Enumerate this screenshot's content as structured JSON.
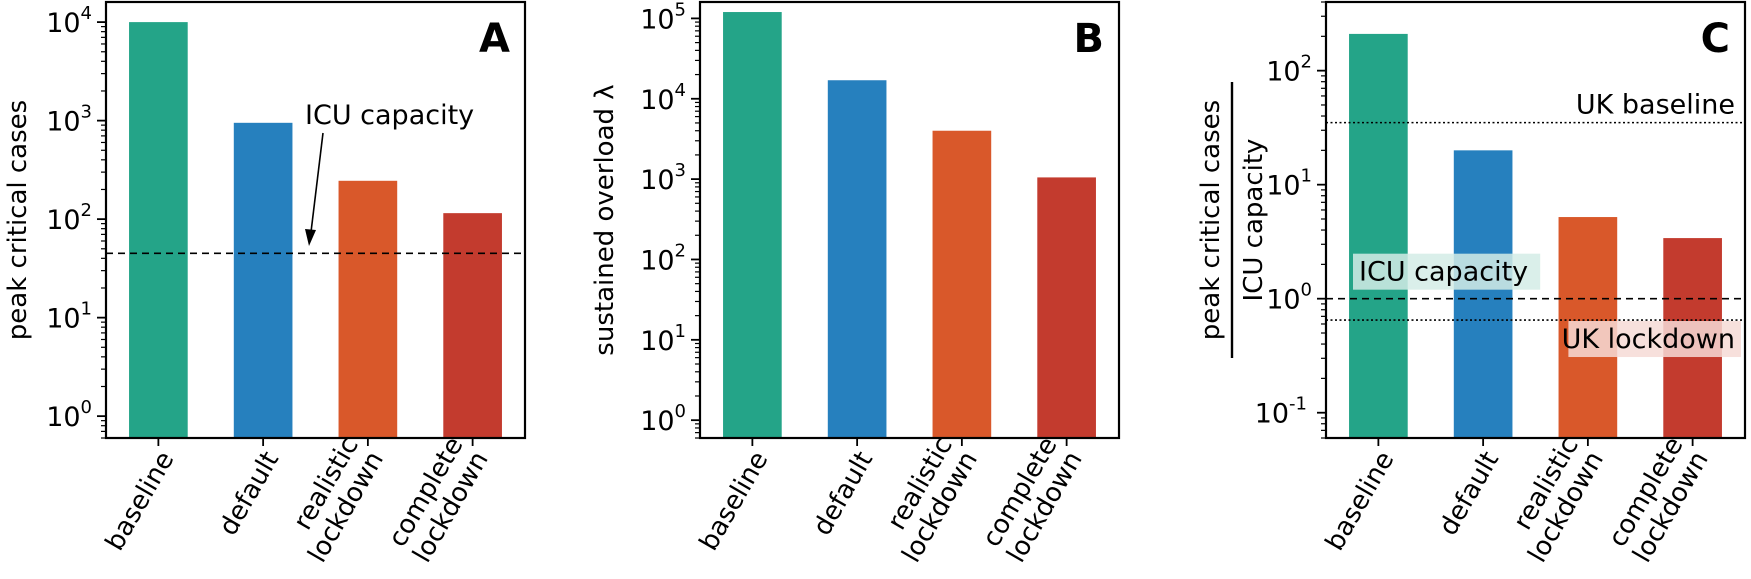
{
  "chart_data": [
    {
      "panel": "A",
      "type": "bar",
      "yscale": "log",
      "ylim": [
        0.6,
        16000
      ],
      "yticks": [
        1,
        10,
        100,
        1000,
        10000
      ],
      "ytick_labels": [
        {
          "base": "10",
          "exp": "0"
        },
        {
          "base": "10",
          "exp": "1"
        },
        {
          "base": "10",
          "exp": "2"
        },
        {
          "base": "10",
          "exp": "3"
        },
        {
          "base": "10",
          "exp": "4"
        }
      ],
      "ylabel": "peak critical cases",
      "categories": [
        [
          "baseline"
        ],
        [
          "default"
        ],
        [
          "realistic",
          "lockdown"
        ],
        [
          "complete",
          "lockdown"
        ]
      ],
      "values": [
        10000,
        950,
        245,
        115
      ],
      "colors": [
        "#24a488",
        "#2680be",
        "#d9582a",
        "#c33b2e"
      ],
      "hlines": [
        {
          "y": 45,
          "style": "dashed"
        }
      ],
      "annotations": [
        {
          "text": "ICU capacity",
          "arrow": true
        }
      ]
    },
    {
      "panel": "B",
      "type": "bar",
      "yscale": "log",
      "ylim": [
        0.6,
        160000
      ],
      "yticks": [
        1,
        10,
        100,
        1000,
        10000,
        100000
      ],
      "ytick_labels": [
        {
          "base": "10",
          "exp": "0"
        },
        {
          "base": "10",
          "exp": "1"
        },
        {
          "base": "10",
          "exp": "2"
        },
        {
          "base": "10",
          "exp": "3"
        },
        {
          "base": "10",
          "exp": "4"
        },
        {
          "base": "10",
          "exp": "5"
        }
      ],
      "ylabel": "sustained overload λ",
      "categories": [
        [
          "baseline"
        ],
        [
          "default"
        ],
        [
          "realistic",
          "lockdown"
        ],
        [
          "complete",
          "lockdown"
        ]
      ],
      "values": [
        120000,
        17000,
        4000,
        1050
      ],
      "colors": [
        "#24a488",
        "#2680be",
        "#d9582a",
        "#c33b2e"
      ],
      "hlines": [],
      "annotations": []
    },
    {
      "panel": "C",
      "type": "bar",
      "yscale": "log",
      "ylim": [
        0.06,
        400
      ],
      "yticks": [
        0.1,
        1,
        10,
        100
      ],
      "ytick_labels": [
        {
          "base": "10",
          "exp": "-1"
        },
        {
          "base": "10",
          "exp": "0"
        },
        {
          "base": "10",
          "exp": "1"
        },
        {
          "base": "10",
          "exp": "2"
        }
      ],
      "ylabel_numerator": "peak critical cases",
      "ylabel_denominator": "ICU capacity",
      "categories": [
        [
          "baseline"
        ],
        [
          "default"
        ],
        [
          "realistic",
          "lockdown"
        ],
        [
          "complete",
          "lockdown"
        ]
      ],
      "values": [
        210,
        20,
        5.2,
        3.4
      ],
      "colors": [
        "#24a488",
        "#2680be",
        "#d9582a",
        "#c33b2e"
      ],
      "hlines": [
        {
          "y": 35,
          "style": "dotted",
          "label": "UK baseline"
        },
        {
          "y": 1,
          "style": "dashed",
          "label": "ICU capacity"
        },
        {
          "y": 0.65,
          "style": "dotted",
          "label": "UK lockdown"
        }
      ],
      "annotations": []
    }
  ]
}
